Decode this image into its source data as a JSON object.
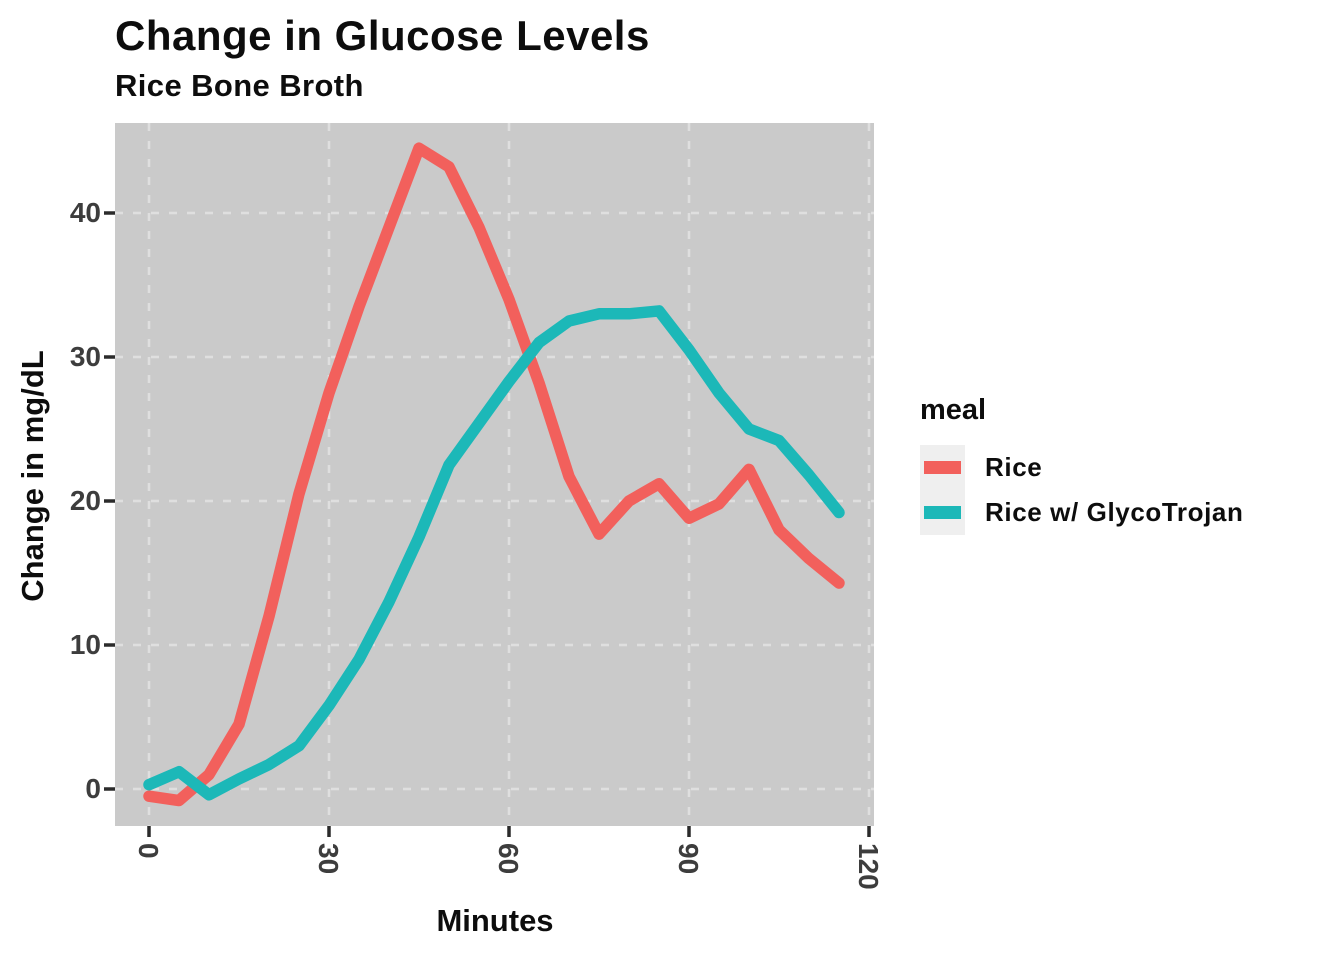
{
  "title": "Change in Glucose Levels",
  "subtitle": "Rice Bone Broth",
  "axes": {
    "x_title": "Minutes",
    "y_title": "Change in mg/dL"
  },
  "legend": {
    "title": "meal",
    "items": [
      {
        "label": "Rice",
        "color": "#F2605C"
      },
      {
        "label": "Rice w/ GlycoTrojan",
        "color": "#1CB8B8"
      }
    ]
  },
  "chart_data": {
    "type": "line",
    "title": "Change in Glucose Levels",
    "subtitle": "Rice Bone Broth",
    "xlabel": "Minutes",
    "ylabel": "Change in mg/dL",
    "x_ticks": [
      0,
      30,
      60,
      90,
      120
    ],
    "y_ticks": [
      0,
      10,
      20,
      30,
      40
    ],
    "xlim": [
      -5.7,
      120.8
    ],
    "ylim": [
      -2.6,
      46.3
    ],
    "grid": "major-dashed",
    "legend_title": "meal",
    "legend_position": "right",
    "panel_bg": "#CACACA",
    "grid_color": "#DFDFDF",
    "tick_color": "#2b2b2b",
    "x": [
      0,
      5,
      10,
      15,
      20,
      25,
      30,
      35,
      40,
      45,
      50,
      55,
      60,
      65,
      70,
      75,
      80,
      85,
      90,
      95,
      100,
      105,
      110,
      115
    ],
    "series": [
      {
        "name": "Rice",
        "color": "#F2605C",
        "values": [
          -0.5,
          -0.8,
          1.0,
          4.5,
          12.0,
          20.5,
          27.5,
          33.5,
          39.0,
          44.5,
          43.2,
          39.0,
          34.0,
          28.2,
          21.7,
          17.7,
          20.0,
          21.2,
          18.8,
          19.8,
          22.2,
          18.0,
          16.0,
          14.3
        ]
      },
      {
        "name": "Rice w/ GlycoTrojan",
        "color": "#1CB8B8",
        "values": [
          0.3,
          1.2,
          -0.4,
          0.7,
          1.7,
          3.0,
          5.8,
          9.0,
          13.0,
          17.5,
          22.5,
          25.4,
          28.3,
          31.0,
          32.5,
          33.0,
          33.0,
          33.2,
          30.5,
          27.5,
          25.0,
          24.2,
          21.8,
          19.2
        ]
      }
    ]
  }
}
